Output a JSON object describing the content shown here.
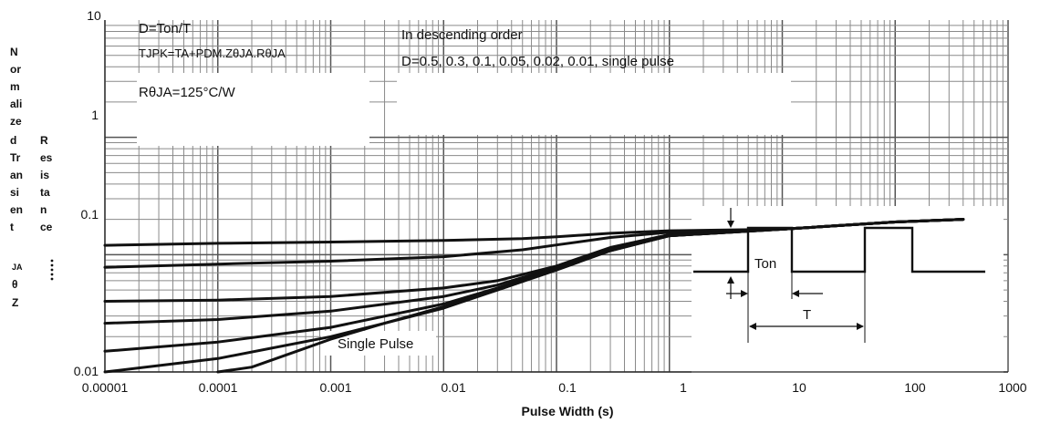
{
  "chart_data": {
    "type": "line",
    "xscale": "log",
    "yscale": "log",
    "xlim": [
      1e-05,
      1000
    ],
    "ylim": [
      0.01,
      10
    ],
    "xticks": [
      1e-05,
      0.0001,
      0.001,
      0.01,
      0.1,
      1,
      10,
      100,
      1000
    ],
    "xtick_labels": [
      "0.00001",
      "0.0001",
      "0.001",
      "0.01",
      "0.1",
      "1",
      "10",
      "100",
      "1000"
    ],
    "yticks": [
      0.01,
      0.1,
      1,
      10
    ],
    "ytick_labels": [
      "0.01",
      "0.1",
      "1",
      "10"
    ],
    "xlabel": "Pulse Width (s)",
    "ylabel_col1": [
      "N",
      "or",
      "m",
      "ali",
      "ze",
      "d",
      "Tr",
      "an",
      "si",
      "en",
      "t",
      "JA",
      "θ",
      "Z"
    ],
    "ylabel_col2": [
      "R",
      "es",
      "is",
      "ta",
      "n",
      "ce"
    ],
    "grid": true,
    "annotations": {
      "formula_line1": "D=Ton/T",
      "formula_line2": "TJPK=TA+PDM.ZθJA.RθJA",
      "order_line1": "In descending order",
      "order_line2": "D=0.5, 0.3, 0.1, 0.05, 0.02, 0.01, single pulse",
      "rthja": "RθJA=125°C/W",
      "single_pulse": "Single Pulse",
      "inset_ton": "Ton",
      "inset_t": "T"
    },
    "series": [
      {
        "x": [
          1e-05,
          0.0001,
          0.001,
          0.01,
          0.05,
          0.1,
          0.3,
          1,
          10,
          100,
          400
        ],
        "y": [
          0.12,
          0.125,
          0.128,
          0.132,
          0.137,
          0.142,
          0.152,
          0.16,
          0.165,
          0.19,
          0.2
        ]
      },
      {
        "x": [
          1e-05,
          0.0001,
          0.001,
          0.01,
          0.05,
          0.1,
          0.3,
          1,
          10,
          100,
          400
        ],
        "y": [
          0.078,
          0.083,
          0.088,
          0.096,
          0.11,
          0.121,
          0.14,
          0.155,
          0.165,
          0.19,
          0.2
        ]
      },
      {
        "x": [
          1e-05,
          0.0001,
          0.001,
          0.01,
          0.03,
          0.1,
          0.3,
          1,
          10,
          100,
          400
        ],
        "y": [
          0.04,
          0.041,
          0.044,
          0.052,
          0.06,
          0.08,
          0.115,
          0.148,
          0.165,
          0.19,
          0.2
        ]
      },
      {
        "x": [
          1e-05,
          0.0001,
          0.001,
          0.01,
          0.03,
          0.1,
          0.3,
          1,
          10,
          100,
          400
        ],
        "y": [
          0.026,
          0.028,
          0.033,
          0.044,
          0.055,
          0.078,
          0.112,
          0.145,
          0.165,
          0.19,
          0.2
        ]
      },
      {
        "x": [
          1e-05,
          0.0001,
          0.001,
          0.01,
          0.03,
          0.1,
          0.3,
          1,
          10,
          100,
          400
        ],
        "y": [
          0.015,
          0.018,
          0.024,
          0.038,
          0.052,
          0.076,
          0.11,
          0.145,
          0.165,
          0.19,
          0.2
        ]
      },
      {
        "x": [
          1e-05,
          0.0001,
          0.001,
          0.003,
          0.01,
          0.03,
          0.1,
          0.3,
          1,
          10,
          100,
          400
        ],
        "y": [
          0.01,
          0.013,
          0.02,
          0.026,
          0.036,
          0.05,
          0.075,
          0.108,
          0.145,
          0.165,
          0.19,
          0.2
        ]
      },
      {
        "x": [
          0.0001,
          0.0002,
          0.0005,
          0.001,
          0.003,
          0.01,
          0.03,
          0.1,
          0.3,
          1,
          10,
          100,
          400
        ],
        "y": [
          0.01,
          0.011,
          0.015,
          0.019,
          0.026,
          0.035,
          0.05,
          0.074,
          0.108,
          0.145,
          0.165,
          0.19,
          0.2
        ]
      }
    ]
  }
}
